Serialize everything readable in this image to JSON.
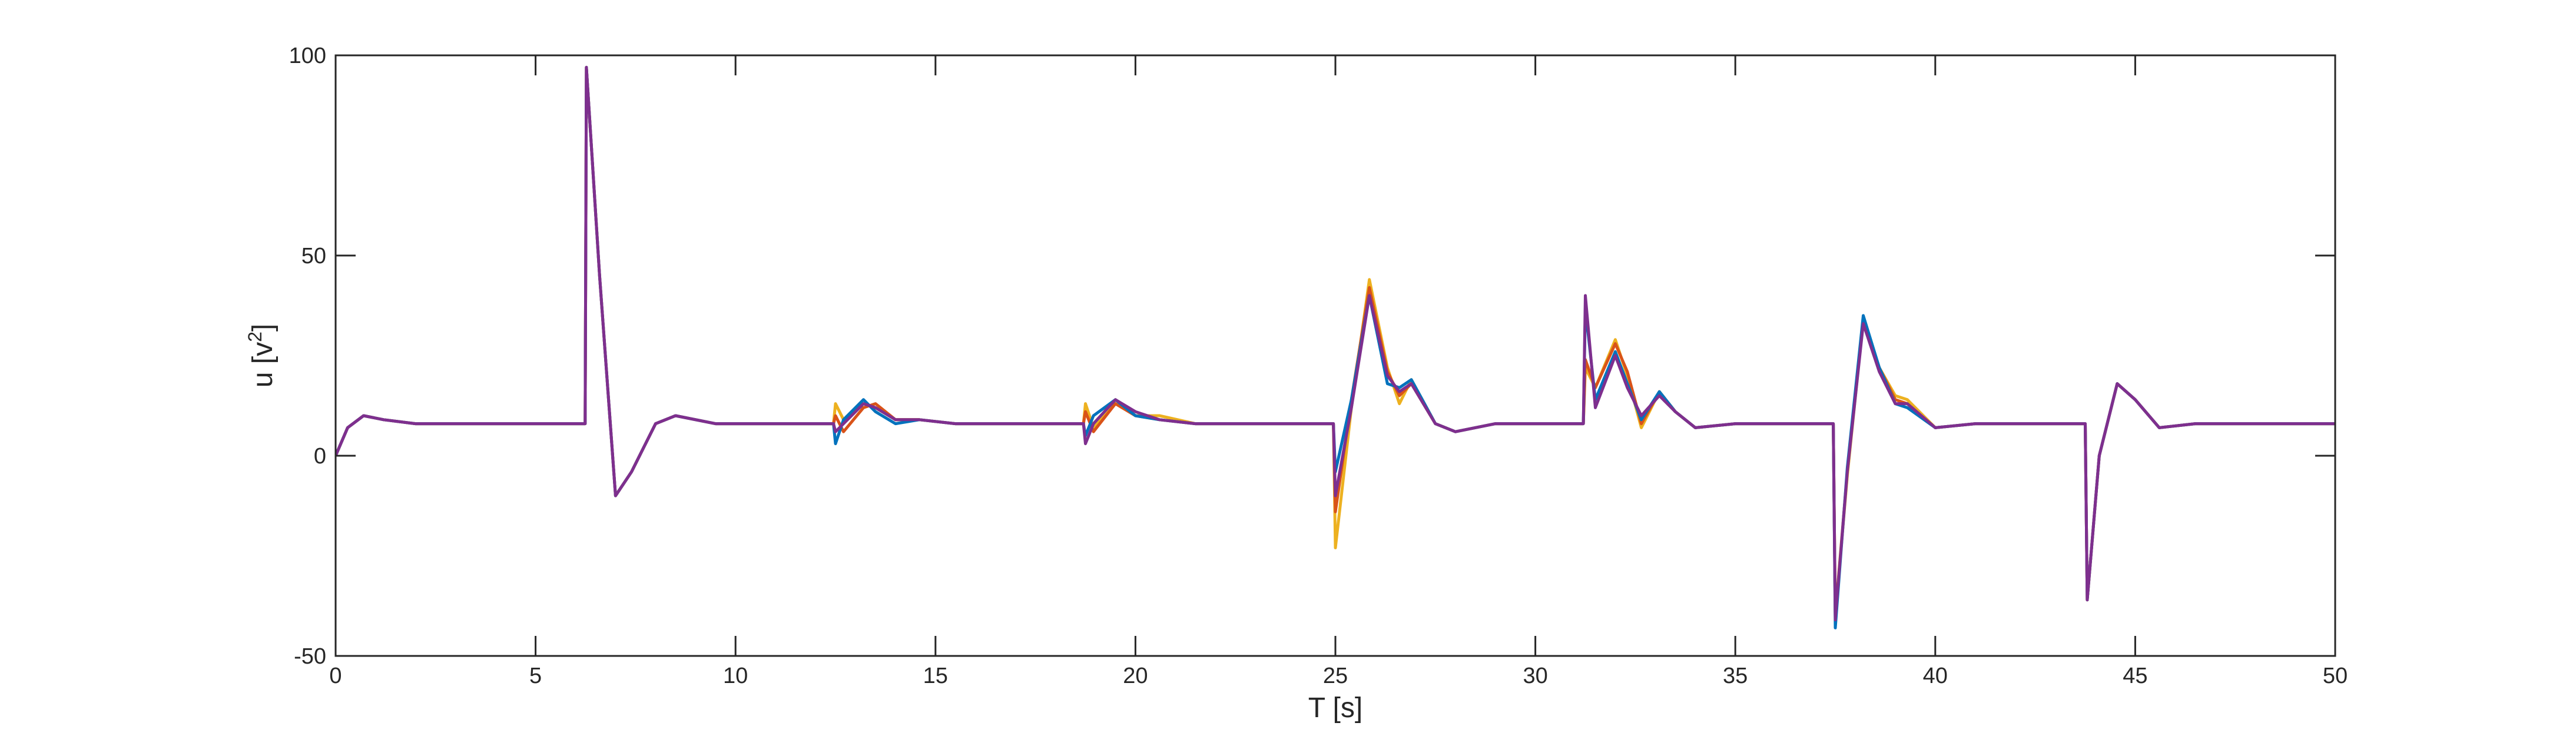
{
  "chart_data": {
    "type": "line",
    "title": "",
    "xlabel": "T [s]",
    "ylabel_base": "u [v",
    "ylabel_sup": "2",
    "ylabel_close": "]",
    "xlim": [
      0,
      50
    ],
    "ylim": [
      -50,
      100
    ],
    "xticks": [
      0,
      5,
      10,
      15,
      20,
      25,
      30,
      35,
      40,
      45,
      50
    ],
    "yticks": [
      -50,
      0,
      50,
      100
    ],
    "grid": false,
    "legend": "none",
    "x_tick_labels": [
      "0",
      "5",
      "10",
      "15",
      "20",
      "25",
      "30",
      "35",
      "40",
      "45",
      "50"
    ],
    "y_tick_labels": [
      "-50",
      "0",
      "50",
      "100"
    ],
    "series": [
      {
        "color": "#EDB120",
        "points": [
          [
            0,
            0
          ],
          [
            0.3,
            7
          ],
          [
            0.7,
            10
          ],
          [
            1.2,
            9
          ],
          [
            2,
            8
          ],
          [
            6.24,
            8
          ],
          [
            6.27,
            97
          ],
          [
            6.6,
            45
          ],
          [
            7.0,
            -10
          ],
          [
            7.4,
            -4
          ],
          [
            8.0,
            8
          ],
          [
            8.5,
            10
          ],
          [
            9.5,
            8
          ],
          [
            12.45,
            8
          ],
          [
            12.5,
            13
          ],
          [
            12.7,
            9
          ],
          [
            13.2,
            13
          ],
          [
            13.5,
            12
          ],
          [
            14.0,
            9
          ],
          [
            14.6,
            9
          ],
          [
            15.5,
            8
          ],
          [
            18.7,
            8
          ],
          [
            18.75,
            13
          ],
          [
            18.95,
            7
          ],
          [
            19.5,
            14
          ],
          [
            20.0,
            10
          ],
          [
            20.6,
            10
          ],
          [
            21.5,
            8
          ],
          [
            24.95,
            8
          ],
          [
            25.0,
            -23
          ],
          [
            25.4,
            12
          ],
          [
            25.85,
            44
          ],
          [
            26.3,
            22
          ],
          [
            26.6,
            13
          ],
          [
            26.9,
            19
          ],
          [
            27.5,
            8
          ],
          [
            28.0,
            6
          ],
          [
            29.0,
            8
          ],
          [
            31.2,
            8
          ],
          [
            31.25,
            22
          ],
          [
            31.5,
            17
          ],
          [
            32.0,
            29
          ],
          [
            32.3,
            20
          ],
          [
            32.65,
            7
          ],
          [
            33.1,
            16
          ],
          [
            33.5,
            11
          ],
          [
            34.0,
            7
          ],
          [
            35.0,
            8
          ],
          [
            37.45,
            8
          ],
          [
            37.5,
            -40
          ],
          [
            37.8,
            -5
          ],
          [
            38.2,
            34
          ],
          [
            38.6,
            22
          ],
          [
            39.0,
            15
          ],
          [
            39.3,
            14
          ],
          [
            40.0,
            7
          ],
          [
            41.0,
            8
          ],
          [
            43.75,
            8
          ],
          [
            43.8,
            -36
          ],
          [
            44.1,
            0
          ],
          [
            44.55,
            18
          ],
          [
            45.0,
            14
          ],
          [
            45.6,
            7
          ],
          [
            46.5,
            8
          ],
          [
            50,
            8
          ]
        ]
      },
      {
        "color": "#D95319",
        "points": [
          [
            0,
            0
          ],
          [
            0.3,
            7
          ],
          [
            0.7,
            10
          ],
          [
            1.2,
            9
          ],
          [
            2,
            8
          ],
          [
            6.24,
            8
          ],
          [
            6.27,
            97
          ],
          [
            6.6,
            45
          ],
          [
            7.0,
            -10
          ],
          [
            7.4,
            -4
          ],
          [
            8.0,
            8
          ],
          [
            8.5,
            10
          ],
          [
            9.5,
            8
          ],
          [
            12.45,
            8
          ],
          [
            12.5,
            10
          ],
          [
            12.7,
            6
          ],
          [
            13.2,
            12
          ],
          [
            13.5,
            13
          ],
          [
            14.0,
            9
          ],
          [
            14.6,
            9
          ],
          [
            15.5,
            8
          ],
          [
            18.7,
            8
          ],
          [
            18.75,
            11
          ],
          [
            18.95,
            6
          ],
          [
            19.5,
            13
          ],
          [
            20.0,
            10
          ],
          [
            20.6,
            9
          ],
          [
            21.5,
            8
          ],
          [
            24.95,
            8
          ],
          [
            25.0,
            -14
          ],
          [
            25.4,
            14
          ],
          [
            25.85,
            42
          ],
          [
            26.3,
            21
          ],
          [
            26.6,
            15
          ],
          [
            26.9,
            18
          ],
          [
            27.5,
            8
          ],
          [
            28.0,
            6
          ],
          [
            29.0,
            8
          ],
          [
            31.2,
            8
          ],
          [
            31.25,
            24
          ],
          [
            31.5,
            17
          ],
          [
            32.0,
            28
          ],
          [
            32.3,
            21
          ],
          [
            32.65,
            8
          ],
          [
            33.1,
            16
          ],
          [
            33.5,
            11
          ],
          [
            34.0,
            7
          ],
          [
            35.0,
            8
          ],
          [
            37.45,
            8
          ],
          [
            37.5,
            -40
          ],
          [
            37.8,
            -4
          ],
          [
            38.2,
            34
          ],
          [
            38.6,
            22
          ],
          [
            39.0,
            14
          ],
          [
            39.3,
            13
          ],
          [
            40.0,
            7
          ],
          [
            41.0,
            8
          ],
          [
            43.75,
            8
          ],
          [
            43.8,
            -36
          ],
          [
            44.1,
            0
          ],
          [
            44.55,
            18
          ],
          [
            45.0,
            14
          ],
          [
            45.6,
            7
          ],
          [
            46.5,
            8
          ],
          [
            50,
            8
          ]
        ]
      },
      {
        "color": "#0072BD",
        "points": [
          [
            0,
            0
          ],
          [
            0.3,
            7
          ],
          [
            0.7,
            10
          ],
          [
            1.2,
            9
          ],
          [
            2,
            8
          ],
          [
            6.24,
            8
          ],
          [
            6.27,
            97
          ],
          [
            6.6,
            45
          ],
          [
            7.0,
            -10
          ],
          [
            7.4,
            -4
          ],
          [
            8.0,
            8
          ],
          [
            8.5,
            10
          ],
          [
            9.5,
            8
          ],
          [
            12.45,
            8
          ],
          [
            12.5,
            3
          ],
          [
            12.7,
            9
          ],
          [
            13.2,
            14
          ],
          [
            13.5,
            11
          ],
          [
            14.0,
            8
          ],
          [
            14.6,
            9
          ],
          [
            15.5,
            8
          ],
          [
            18.7,
            8
          ],
          [
            18.75,
            5
          ],
          [
            18.95,
            10
          ],
          [
            19.5,
            14
          ],
          [
            20.0,
            10
          ],
          [
            20.6,
            9
          ],
          [
            21.5,
            8
          ],
          [
            24.95,
            8
          ],
          [
            25.0,
            -4
          ],
          [
            25.4,
            14
          ],
          [
            25.85,
            40
          ],
          [
            26.3,
            18
          ],
          [
            26.6,
            17
          ],
          [
            26.9,
            19
          ],
          [
            27.5,
            8
          ],
          [
            28.0,
            6
          ],
          [
            29.0,
            8
          ],
          [
            31.2,
            8
          ],
          [
            31.25,
            37
          ],
          [
            31.5,
            14
          ],
          [
            32.0,
            26
          ],
          [
            32.3,
            18
          ],
          [
            32.65,
            9
          ],
          [
            33.1,
            16
          ],
          [
            33.5,
            11
          ],
          [
            34.0,
            7
          ],
          [
            35.0,
            8
          ],
          [
            37.45,
            8
          ],
          [
            37.5,
            -43
          ],
          [
            37.8,
            -3
          ],
          [
            38.2,
            35
          ],
          [
            38.6,
            22
          ],
          [
            39.0,
            13
          ],
          [
            39.3,
            12
          ],
          [
            40.0,
            7
          ],
          [
            41.0,
            8
          ],
          [
            43.75,
            8
          ],
          [
            43.8,
            -36
          ],
          [
            44.1,
            0
          ],
          [
            44.55,
            18
          ],
          [
            45.0,
            14
          ],
          [
            45.6,
            7
          ],
          [
            46.5,
            8
          ],
          [
            50,
            8
          ]
        ]
      },
      {
        "color": "#7E2F8E",
        "points": [
          [
            0,
            0
          ],
          [
            0.3,
            7
          ],
          [
            0.7,
            10
          ],
          [
            1.2,
            9
          ],
          [
            2,
            8
          ],
          [
            6.24,
            8
          ],
          [
            6.27,
            97
          ],
          [
            6.6,
            45
          ],
          [
            7.0,
            -10
          ],
          [
            7.4,
            -4
          ],
          [
            8.0,
            8
          ],
          [
            8.5,
            10
          ],
          [
            9.5,
            8
          ],
          [
            12.45,
            8
          ],
          [
            12.5,
            6
          ],
          [
            12.7,
            8
          ],
          [
            13.2,
            13
          ],
          [
            13.5,
            12
          ],
          [
            14.0,
            9
          ],
          [
            14.6,
            9
          ],
          [
            15.5,
            8
          ],
          [
            18.7,
            8
          ],
          [
            18.75,
            3
          ],
          [
            18.95,
            8
          ],
          [
            19.5,
            14
          ],
          [
            20.0,
            11
          ],
          [
            20.6,
            9
          ],
          [
            21.5,
            8
          ],
          [
            24.95,
            8
          ],
          [
            25.0,
            -10
          ],
          [
            25.4,
            12
          ],
          [
            25.85,
            40
          ],
          [
            26.3,
            20
          ],
          [
            26.6,
            16
          ],
          [
            26.9,
            18
          ],
          [
            27.5,
            8
          ],
          [
            28.0,
            6
          ],
          [
            29.0,
            8
          ],
          [
            31.2,
            8
          ],
          [
            31.25,
            40
          ],
          [
            31.5,
            12
          ],
          [
            32.0,
            25
          ],
          [
            32.3,
            17
          ],
          [
            32.65,
            10
          ],
          [
            33.1,
            15
          ],
          [
            33.5,
            11
          ],
          [
            34.0,
            7
          ],
          [
            35.0,
            8
          ],
          [
            37.45,
            8
          ],
          [
            37.5,
            -41
          ],
          [
            37.8,
            -4
          ],
          [
            38.2,
            33
          ],
          [
            38.6,
            21
          ],
          [
            39.0,
            13
          ],
          [
            39.3,
            13
          ],
          [
            40.0,
            7
          ],
          [
            41.0,
            8
          ],
          [
            43.75,
            8
          ],
          [
            43.8,
            -36
          ],
          [
            44.1,
            0
          ],
          [
            44.55,
            18
          ],
          [
            45.0,
            14
          ],
          [
            45.6,
            7
          ],
          [
            46.5,
            8
          ],
          [
            50,
            8
          ]
        ]
      }
    ]
  }
}
